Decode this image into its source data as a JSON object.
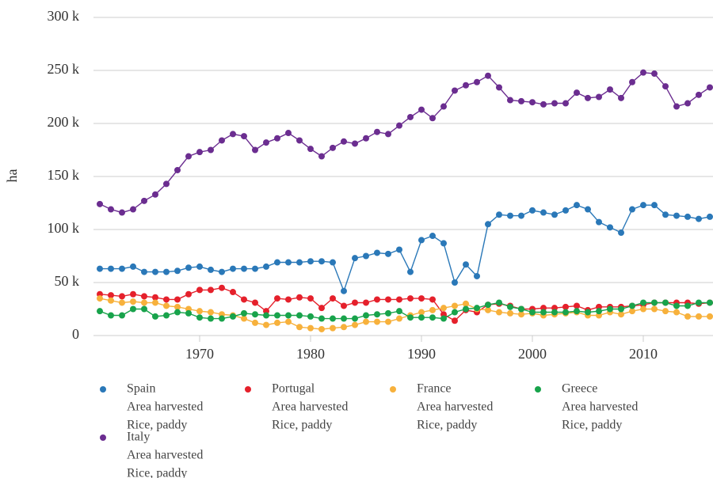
{
  "chart_data": {
    "type": "line",
    "y_label": "ha",
    "ylim": [
      0,
      300000
    ],
    "yticks": [
      {
        "value": 0,
        "label": "0"
      },
      {
        "value": 50000,
        "label": "50 k"
      },
      {
        "value": 100000,
        "label": "100 k"
      },
      {
        "value": 150000,
        "label": "150 k"
      },
      {
        "value": 200000,
        "label": "200 k"
      },
      {
        "value": 250000,
        "label": "250 k"
      },
      {
        "value": 300000,
        "label": "300 k"
      }
    ],
    "xlim": [
      1961,
      2016
    ],
    "xticks": [
      1970,
      1980,
      1990,
      2000,
      2010
    ],
    "grid": true,
    "x": [
      1961,
      1962,
      1963,
      1964,
      1965,
      1966,
      1967,
      1968,
      1969,
      1970,
      1971,
      1972,
      1973,
      1974,
      1975,
      1976,
      1977,
      1978,
      1979,
      1980,
      1981,
      1982,
      1983,
      1984,
      1985,
      1986,
      1987,
      1988,
      1989,
      1990,
      1991,
      1992,
      1993,
      1994,
      1995,
      1996,
      1997,
      1998,
      1999,
      2000,
      2001,
      2002,
      2003,
      2004,
      2005,
      2006,
      2007,
      2008,
      2009,
      2010,
      2011,
      2012,
      2013,
      2014,
      2015,
      2016
    ],
    "series": [
      {
        "name": "Spain",
        "element": "Area harvested",
        "item": "Rice, paddy",
        "color": "#2a78b8",
        "values": [
          63000,
          63000,
          63000,
          65000,
          60000,
          60000,
          60000,
          61000,
          64000,
          65000,
          62000,
          60000,
          63000,
          63000,
          63000,
          65000,
          69000,
          69000,
          69000,
          70000,
          70000,
          69000,
          42000,
          73000,
          75000,
          78000,
          77000,
          81000,
          60000,
          90000,
          94000,
          87000,
          50000,
          67000,
          56000,
          105000,
          114000,
          113000,
          113000,
          118000,
          116000,
          114000,
          118000,
          123000,
          119000,
          107000,
          102000,
          97000,
          119000,
          123000,
          123000,
          114000,
          113000,
          112000,
          110000,
          112000
        ]
      },
      {
        "name": "Portugal",
        "element": "Area harvested",
        "item": "Rice, paddy",
        "color": "#e5202b",
        "values": [
          39000,
          38000,
          37000,
          39000,
          37000,
          36000,
          34000,
          34000,
          39000,
          43000,
          43000,
          45000,
          41000,
          34000,
          31000,
          23000,
          35000,
          34000,
          36000,
          35000,
          26000,
          35000,
          28000,
          31000,
          31000,
          34000,
          34000,
          34000,
          35000,
          35000,
          34000,
          20000,
          14000,
          24000,
          22000,
          29000,
          30000,
          28000,
          25000,
          25000,
          26000,
          26000,
          27000,
          28000,
          24000,
          27000,
          27000,
          27000,
          28000,
          29000,
          31000,
          31000,
          31000,
          31000,
          30000,
          31000
        ]
      },
      {
        "name": "France",
        "element": "Area harvested",
        "item": "Rice, paddy",
        "color": "#f7b13c",
        "values": [
          35000,
          33000,
          31000,
          32000,
          31000,
          31000,
          28000,
          27000,
          25000,
          23000,
          22000,
          20000,
          19000,
          16000,
          12000,
          10000,
          12000,
          13000,
          8000,
          7000,
          6000,
          7000,
          8000,
          10000,
          13000,
          13000,
          13000,
          16000,
          19000,
          22000,
          24000,
          26000,
          28000,
          30000,
          25000,
          24000,
          22000,
          21000,
          20000,
          21000,
          19000,
          20000,
          21000,
          22000,
          19000,
          19000,
          22000,
          20000,
          23000,
          25000,
          25000,
          23000,
          22000,
          18000,
          18000,
          18000
        ]
      },
      {
        "name": "Greece",
        "element": "Area harvested",
        "item": "Rice, paddy",
        "color": "#18a34b",
        "values": [
          23000,
          19000,
          19000,
          25000,
          25000,
          18000,
          19000,
          22000,
          21000,
          17000,
          16000,
          16000,
          18000,
          21000,
          20000,
          19000,
          19000,
          19000,
          19000,
          18000,
          16000,
          16000,
          16000,
          16000,
          19000,
          20000,
          21000,
          23000,
          17000,
          17000,
          17000,
          16000,
          22000,
          25000,
          26000,
          29000,
          31000,
          27000,
          25000,
          22000,
          22000,
          22000,
          22000,
          23000,
          22000,
          23000,
          25000,
          25000,
          28000,
          31000,
          31000,
          31000,
          28000,
          28000,
          31000,
          31000
        ]
      },
      {
        "name": "Italy",
        "element": "Area harvested",
        "item": "Rice, paddy",
        "color": "#6b2d90",
        "values": [
          124000,
          119000,
          116000,
          119000,
          127000,
          133000,
          143000,
          156000,
          169000,
          173000,
          175000,
          184000,
          190000,
          188000,
          175000,
          182000,
          186000,
          191000,
          184000,
          176000,
          169000,
          177000,
          183000,
          181000,
          186000,
          192000,
          190000,
          198000,
          206000,
          213000,
          205000,
          216000,
          231000,
          236000,
          239000,
          245000,
          234000,
          222000,
          221000,
          220000,
          218000,
          219000,
          219000,
          229000,
          224000,
          225000,
          232000,
          224000,
          239000,
          248000,
          247000,
          235000,
          216000,
          219000,
          227000,
          234000
        ]
      }
    ]
  }
}
